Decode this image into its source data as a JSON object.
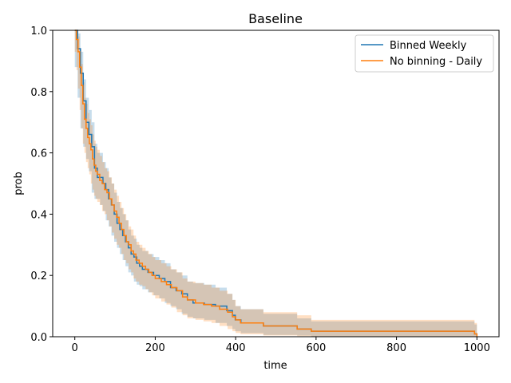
{
  "chart_data": {
    "type": "line",
    "title": "Baseline",
    "xlabel": "time",
    "ylabel": "prob",
    "xlim": [
      -55,
      1055
    ],
    "ylim": [
      0,
      1.0
    ],
    "xticks": [
      0,
      200,
      400,
      600,
      800,
      1000
    ],
    "yticks": [
      0.0,
      0.2,
      0.4,
      0.6,
      0.8,
      1.0
    ],
    "grid": false,
    "legend_position": "top-right",
    "series": [
      {
        "name": "Binned Weekly",
        "color": "#1f77b4",
        "step": true,
        "x": [
          0,
          7,
          14,
          21,
          28,
          35,
          42,
          49,
          56,
          63,
          70,
          77,
          84,
          91,
          98,
          105,
          112,
          119,
          126,
          133,
          140,
          147,
          154,
          161,
          168,
          182,
          196,
          210,
          224,
          238,
          252,
          266,
          280,
          294,
          322,
          350,
          378,
          392,
          399,
          413,
          469,
          553,
          588,
          994,
          1000
        ],
        "y": [
          1.0,
          0.94,
          0.86,
          0.77,
          0.7,
          0.66,
          0.62,
          0.55,
          0.52,
          0.52,
          0.5,
          0.48,
          0.45,
          0.43,
          0.4,
          0.37,
          0.35,
          0.33,
          0.31,
          0.29,
          0.27,
          0.26,
          0.24,
          0.23,
          0.22,
          0.21,
          0.2,
          0.19,
          0.18,
          0.16,
          0.15,
          0.14,
          0.12,
          0.11,
          0.105,
          0.1,
          0.085,
          0.07,
          0.055,
          0.045,
          0.035,
          0.025,
          0.018,
          0.009,
          0.0
        ],
        "ci_lower": [
          1.0,
          0.88,
          0.78,
          0.68,
          0.62,
          0.58,
          0.54,
          0.47,
          0.45,
          0.45,
          0.43,
          0.41,
          0.38,
          0.36,
          0.33,
          0.31,
          0.29,
          0.27,
          0.25,
          0.23,
          0.21,
          0.2,
          0.18,
          0.17,
          0.165,
          0.155,
          0.145,
          0.135,
          0.125,
          0.11,
          0.1,
          0.09,
          0.075,
          0.065,
          0.06,
          0.055,
          0.045,
          0.035,
          0.025,
          0.018,
          0.012,
          0.006,
          0.004,
          0.0,
          0.0
        ],
        "ci_upper": [
          1.0,
          0.99,
          0.93,
          0.84,
          0.78,
          0.74,
          0.7,
          0.63,
          0.6,
          0.6,
          0.57,
          0.55,
          0.52,
          0.5,
          0.47,
          0.44,
          0.42,
          0.4,
          0.38,
          0.35,
          0.33,
          0.32,
          0.3,
          0.29,
          0.28,
          0.27,
          0.26,
          0.25,
          0.24,
          0.22,
          0.21,
          0.2,
          0.18,
          0.175,
          0.17,
          0.16,
          0.14,
          0.12,
          0.1,
          0.09,
          0.075,
          0.06,
          0.05,
          0.04,
          0.04
        ]
      },
      {
        "name": "No binning - Daily",
        "color": "#ff7f0e",
        "step": true,
        "x": [
          0,
          4,
          8,
          12,
          16,
          20,
          24,
          28,
          32,
          36,
          40,
          44,
          48,
          52,
          56,
          62,
          68,
          74,
          80,
          86,
          92,
          98,
          104,
          110,
          116,
          122,
          128,
          134,
          140,
          146,
          152,
          160,
          168,
          176,
          184,
          192,
          200,
          215,
          228,
          240,
          254,
          268,
          280,
          300,
          320,
          340,
          360,
          380,
          392,
          400,
          412,
          469,
          553,
          588,
          994,
          1000
        ],
        "y": [
          1.0,
          0.97,
          0.93,
          0.88,
          0.82,
          0.76,
          0.71,
          0.68,
          0.65,
          0.63,
          0.61,
          0.58,
          0.56,
          0.54,
          0.53,
          0.51,
          0.5,
          0.48,
          0.47,
          0.45,
          0.43,
          0.41,
          0.39,
          0.37,
          0.35,
          0.33,
          0.31,
          0.3,
          0.28,
          0.27,
          0.25,
          0.24,
          0.23,
          0.22,
          0.21,
          0.2,
          0.19,
          0.18,
          0.17,
          0.16,
          0.15,
          0.13,
          0.12,
          0.11,
          0.105,
          0.1,
          0.09,
          0.08,
          0.065,
          0.055,
          0.045,
          0.035,
          0.025,
          0.018,
          0.009,
          0.0
        ],
        "ci_lower": [
          1.0,
          0.93,
          0.87,
          0.81,
          0.74,
          0.68,
          0.63,
          0.6,
          0.57,
          0.55,
          0.53,
          0.5,
          0.48,
          0.46,
          0.45,
          0.44,
          0.43,
          0.41,
          0.4,
          0.38,
          0.36,
          0.34,
          0.32,
          0.3,
          0.29,
          0.27,
          0.25,
          0.24,
          0.22,
          0.21,
          0.19,
          0.18,
          0.17,
          0.165,
          0.155,
          0.145,
          0.135,
          0.125,
          0.115,
          0.105,
          0.095,
          0.08,
          0.07,
          0.06,
          0.055,
          0.05,
          0.045,
          0.035,
          0.025,
          0.018,
          0.012,
          0.008,
          0.004,
          0.002,
          0.0,
          0.0
        ],
        "ci_upper": [
          1.0,
          1.0,
          0.98,
          0.94,
          0.89,
          0.83,
          0.78,
          0.76,
          0.73,
          0.71,
          0.69,
          0.66,
          0.64,
          0.62,
          0.61,
          0.59,
          0.57,
          0.55,
          0.54,
          0.52,
          0.5,
          0.48,
          0.46,
          0.44,
          0.42,
          0.4,
          0.38,
          0.36,
          0.35,
          0.33,
          0.31,
          0.3,
          0.29,
          0.28,
          0.27,
          0.26,
          0.25,
          0.24,
          0.23,
          0.22,
          0.21,
          0.19,
          0.18,
          0.175,
          0.17,
          0.16,
          0.15,
          0.14,
          0.12,
          0.1,
          0.09,
          0.08,
          0.07,
          0.055,
          0.045,
          0.04
        ]
      }
    ]
  }
}
